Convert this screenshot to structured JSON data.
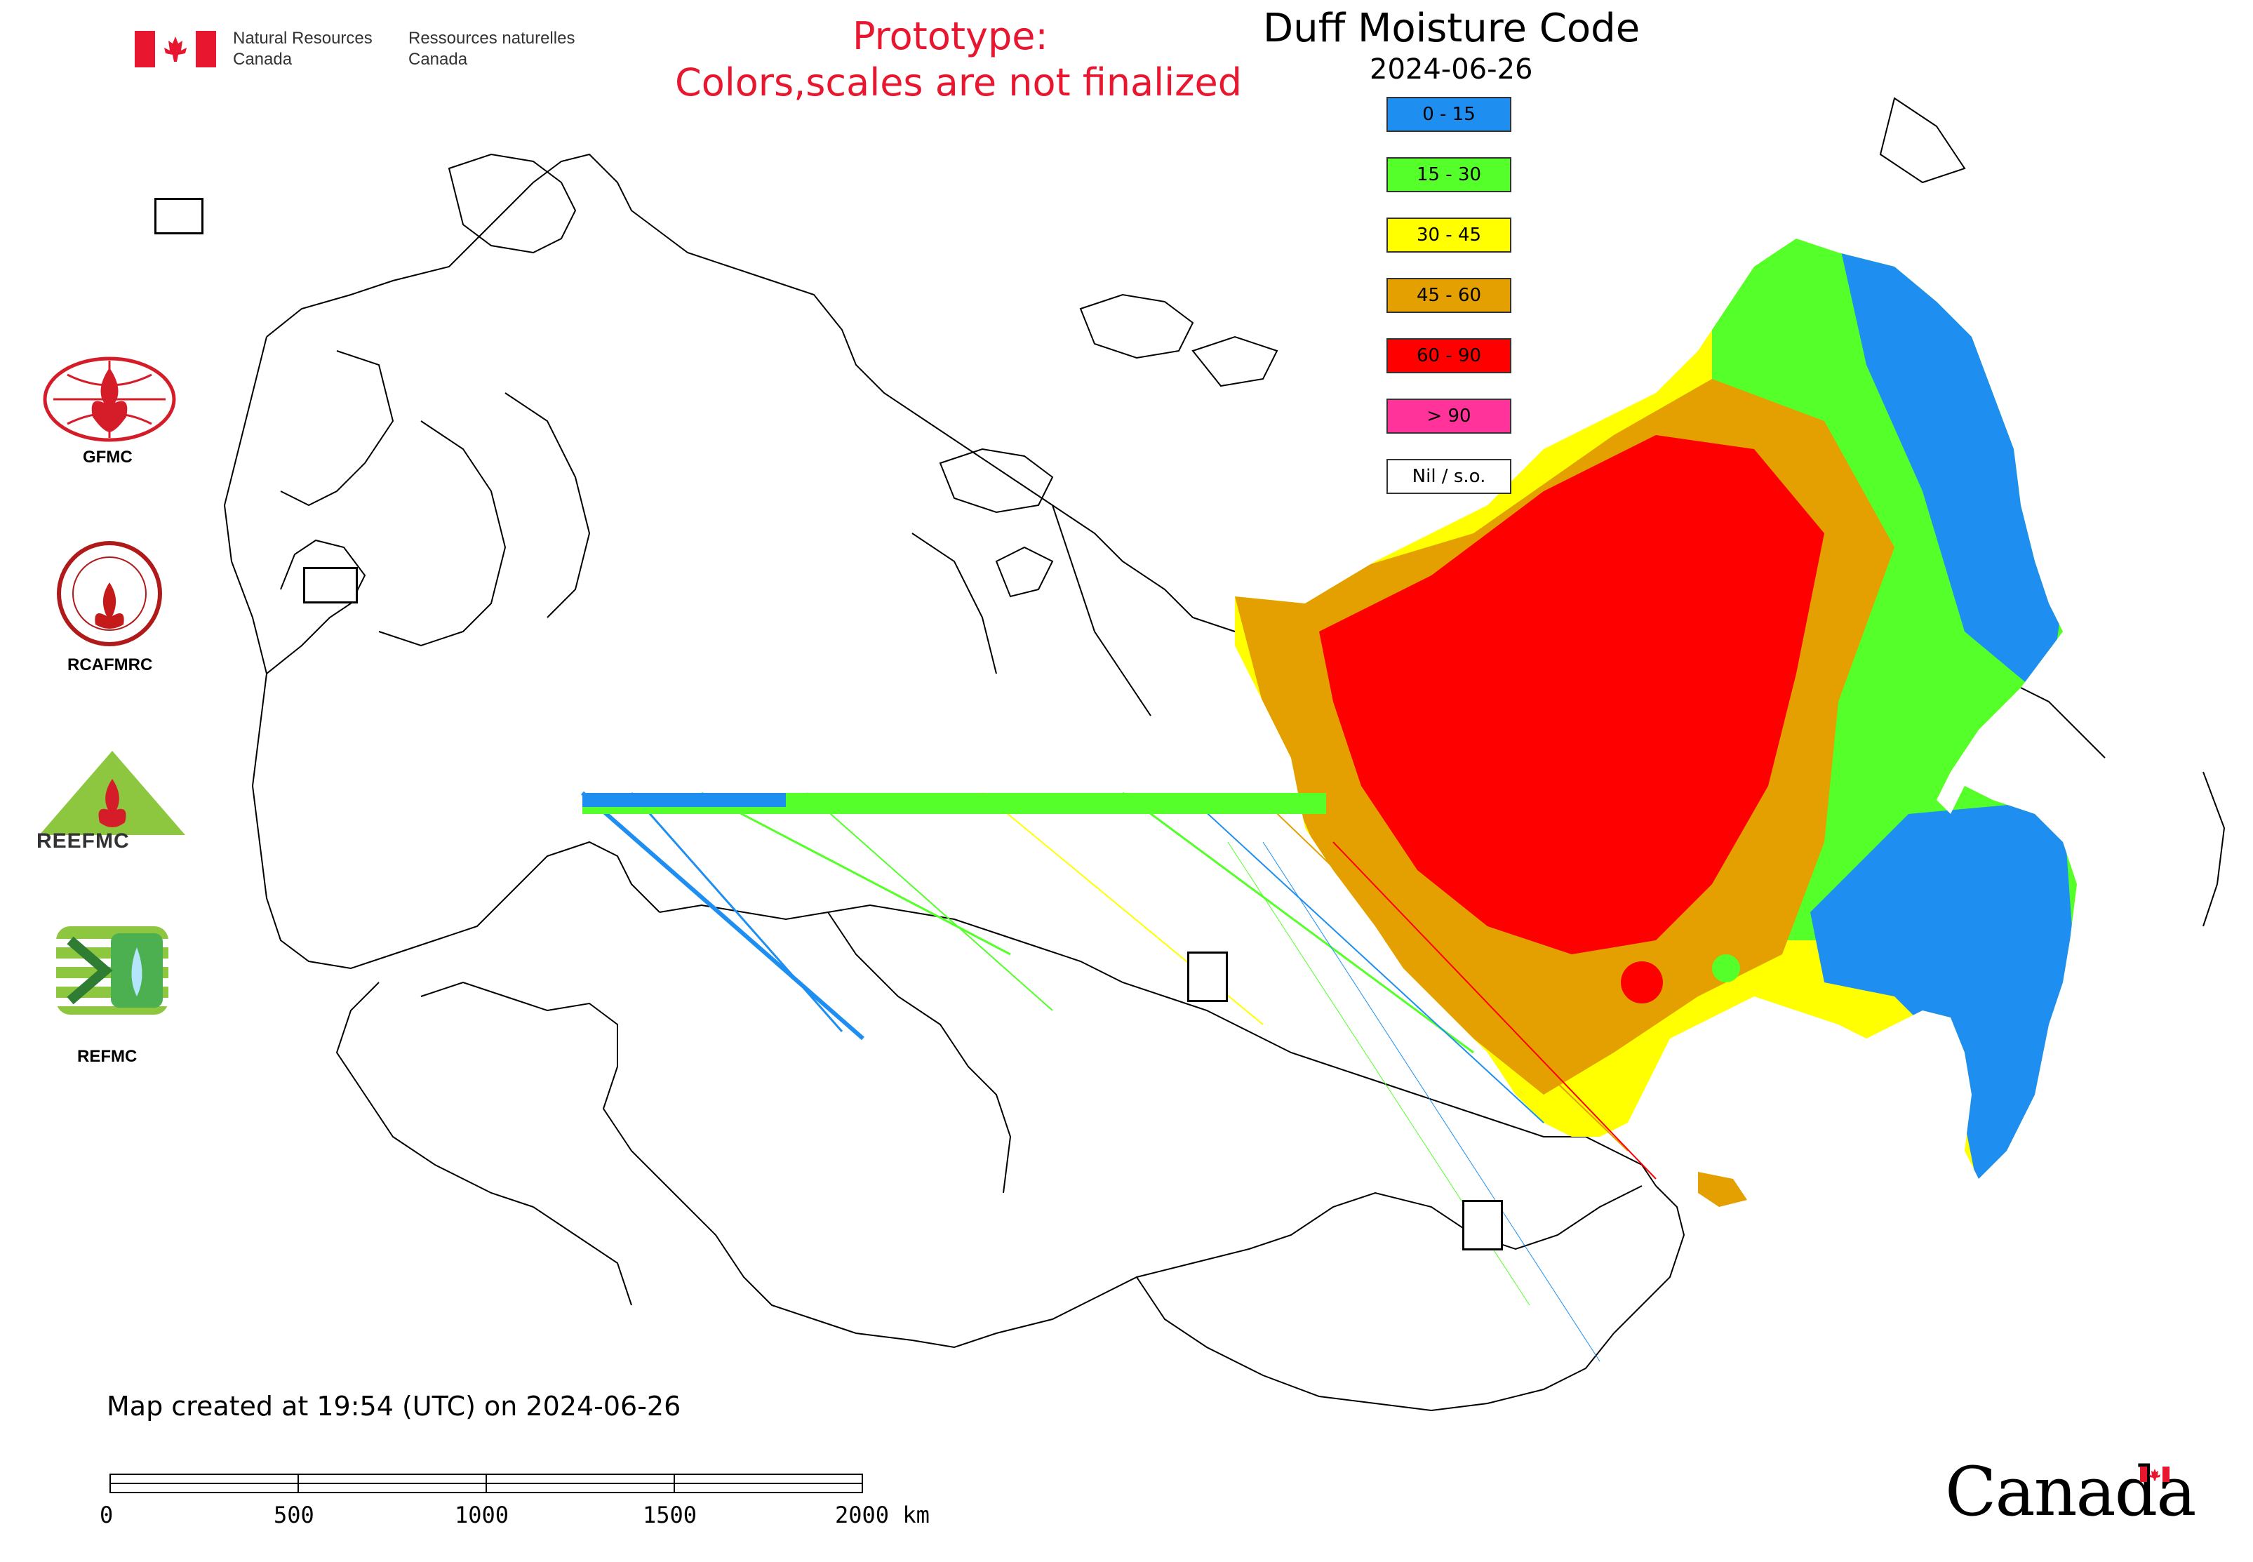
{
  "header": {
    "title": "Duff Moisture Code",
    "date": "2024-06-26",
    "prototype_line1": "Prototype:",
    "prototype_line2": "Colors,scales are not finalized"
  },
  "nrcan": {
    "en_line1": "Natural Resources",
    "en_line2": "Canada",
    "fr_line1": "Ressources naturelles",
    "fr_line2": "Canada"
  },
  "legend": [
    {
      "label": "0 - 15",
      "color": "#1e8ef0"
    },
    {
      "label": "15 - 30",
      "color": "#55ff2a"
    },
    {
      "label": "30 - 45",
      "color": "#ffff00"
    },
    {
      "label": "45 - 60",
      "color": "#e3a000"
    },
    {
      "label": "60 - 90",
      "color": "#ff0000"
    },
    {
      "label": "> 90",
      "color": "#ff3399"
    },
    {
      "label": "Nil / s.o.",
      "color": "#ffffff"
    }
  ],
  "logos": {
    "gfmc": "GFMC",
    "rcafmrc": "RCAFMRC",
    "reefmc": "REEFMC",
    "refmc": "REFMC"
  },
  "footer": {
    "created": "Map created at 19:54 (UTC) on 2024-06-26",
    "scale_ticks": [
      "0",
      "500",
      "1000",
      "1500",
      "2000 km"
    ],
    "wordmark": "Canada"
  },
  "colors": {
    "prototype_text": "#e8162e",
    "canada_flag_red": "#e8162e"
  }
}
